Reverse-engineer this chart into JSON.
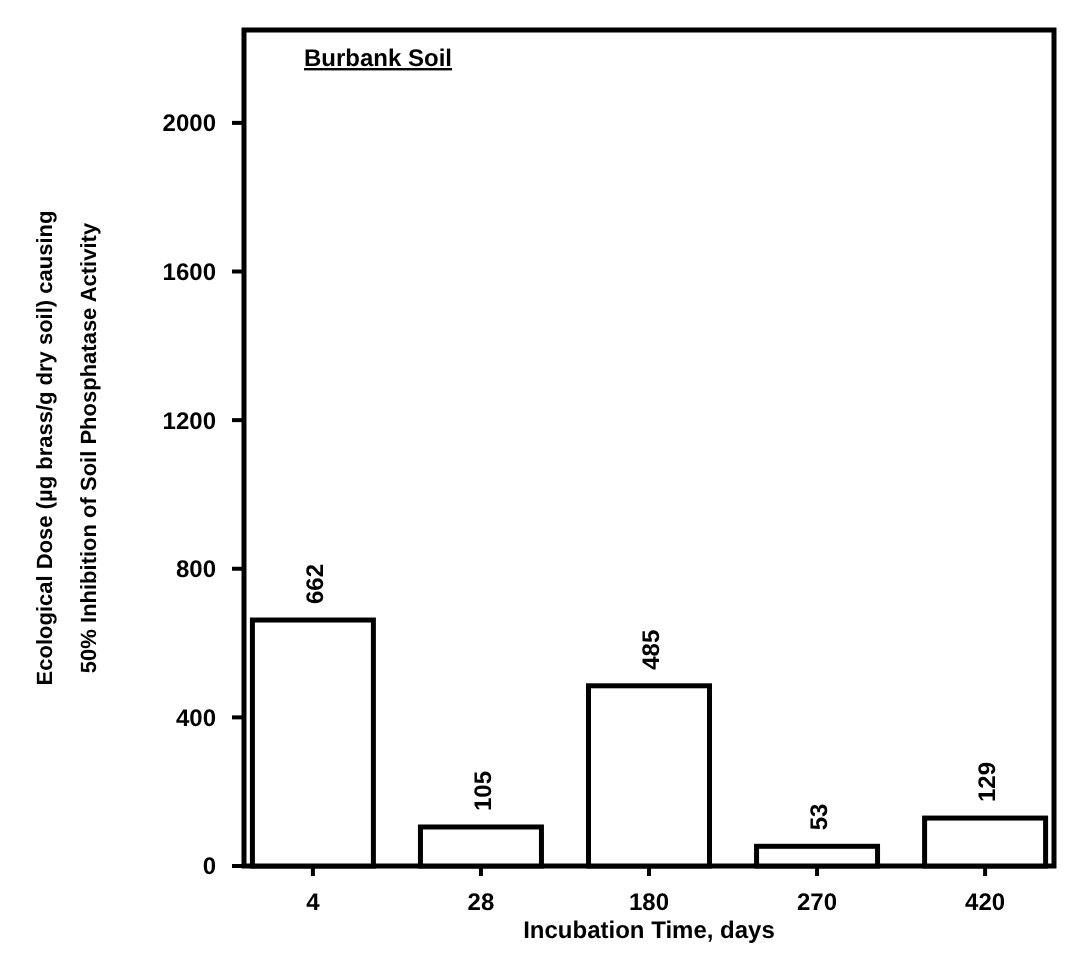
{
  "chart_data": {
    "type": "bar",
    "title": "Burbank Soil",
    "xlabel": "Incubation Time, days",
    "ylabel": "Ecological Dose (µg brass/g dry soil) causing 50% Inhibition of Soil Phosphatase Activity",
    "categories": [
      "4",
      "28",
      "180",
      "270",
      "420"
    ],
    "values": [
      662,
      105,
      485,
      53,
      129
    ],
    "color": "#ffffff",
    "ylim": [
      0,
      2250
    ],
    "yticks": [
      0,
      400,
      800,
      1200,
      1600,
      2000
    ],
    "data_labels": true
  }
}
